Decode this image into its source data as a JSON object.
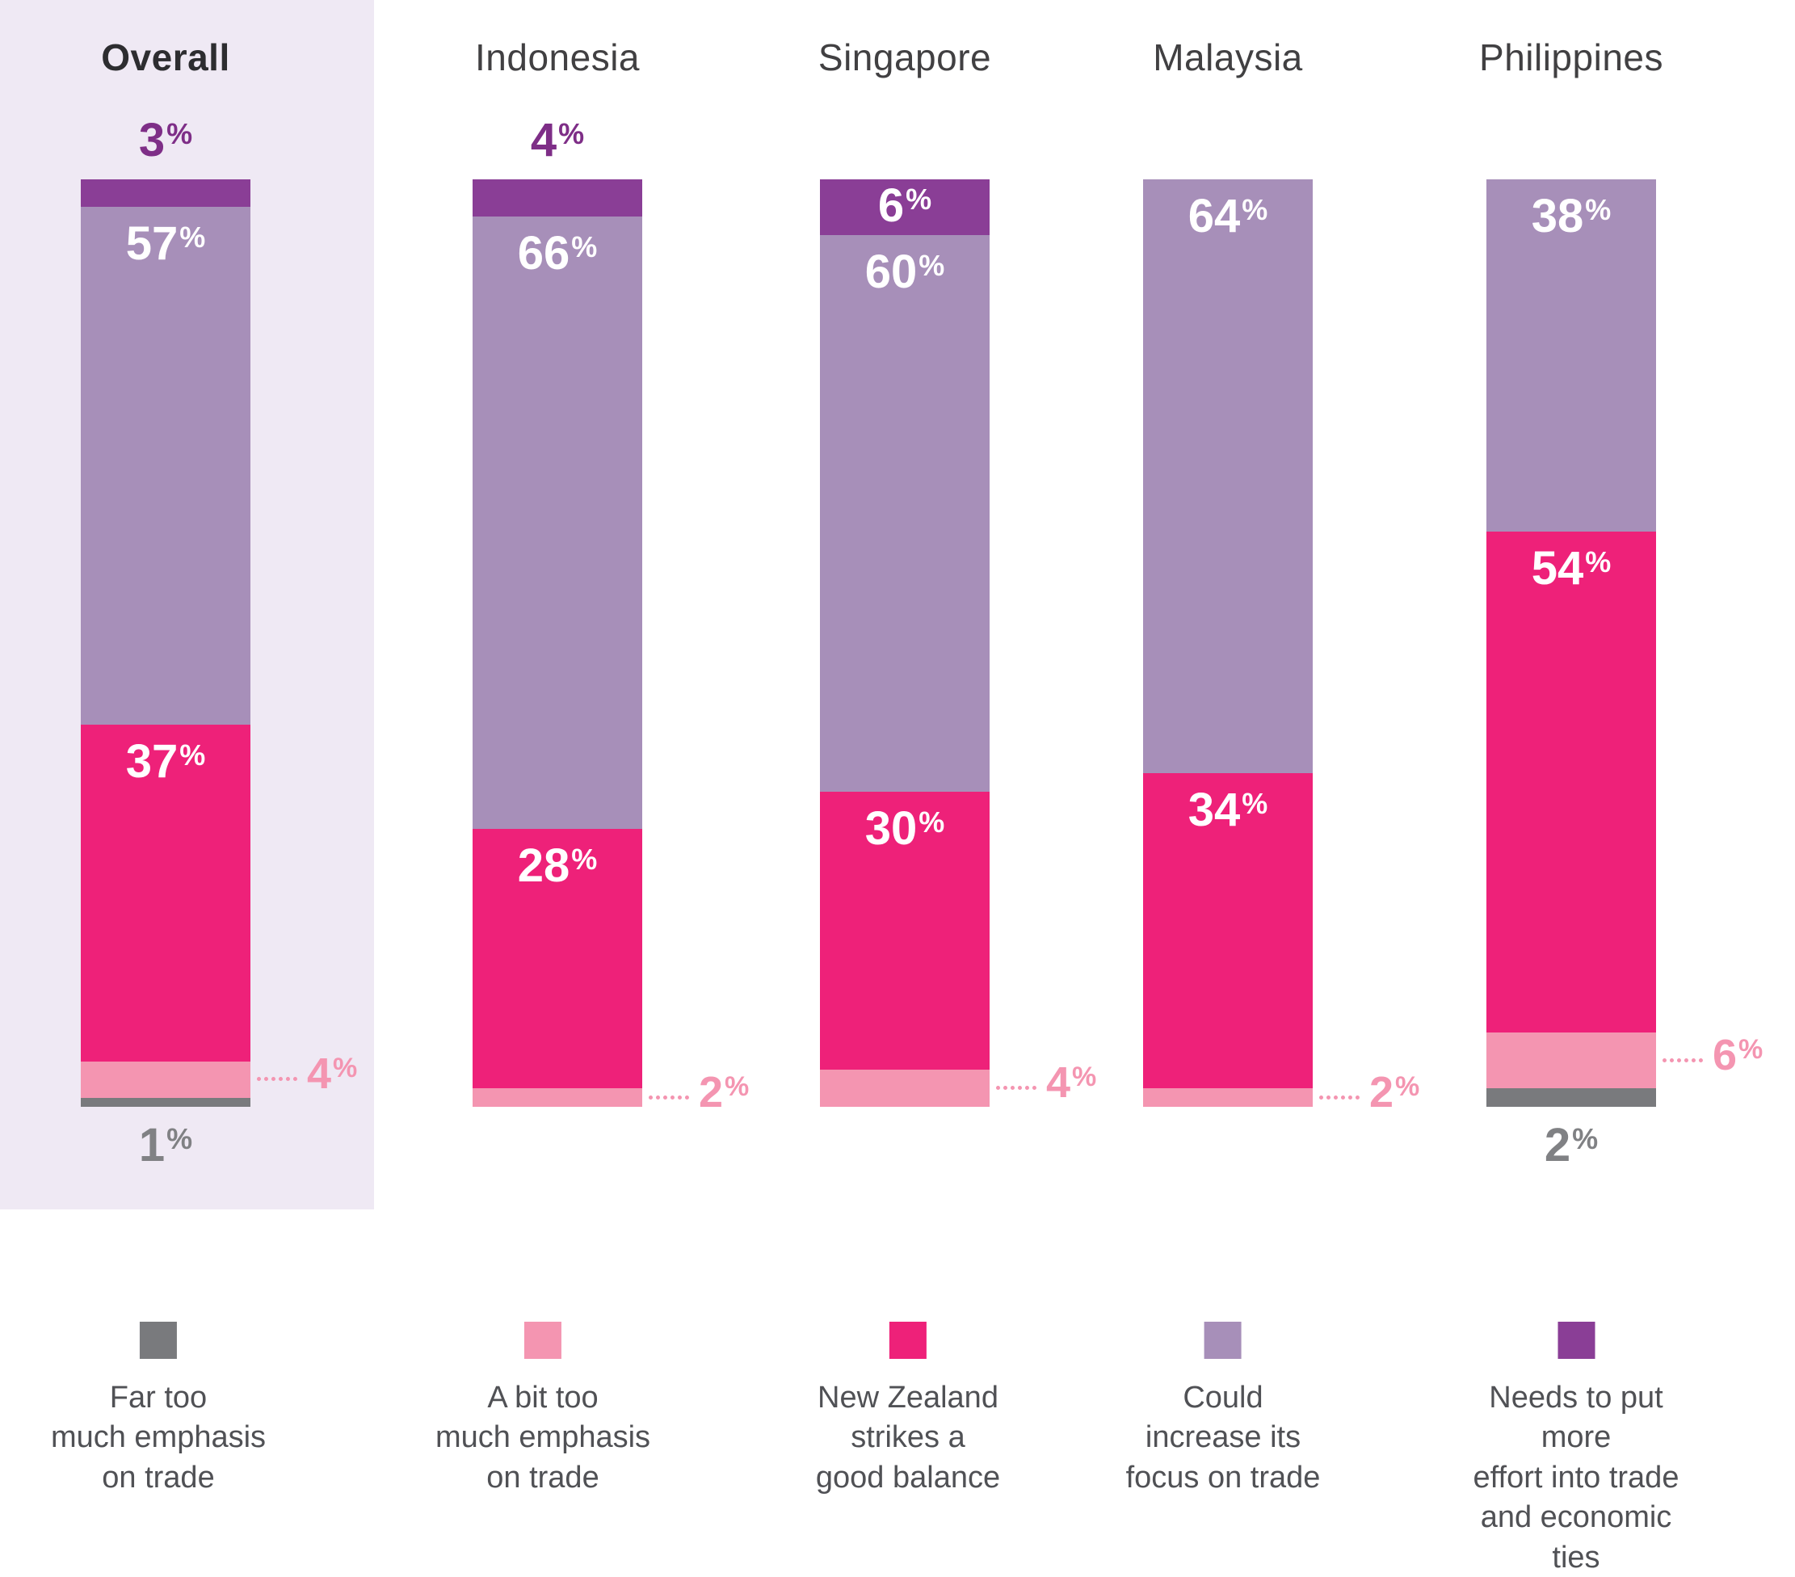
{
  "chart_data": {
    "type": "bar",
    "subtype": "stacked-vertical",
    "unit": "%",
    "value_format": "percent",
    "highlight_color": "#efe9f4",
    "label_colors": {
      "inside": "#ffffff",
      "above": "#7e2e87",
      "below": "#808184",
      "right": "#f495b1"
    },
    "series": [
      {
        "key": "far_too_much",
        "color": "#797a7d",
        "legend_lines": [
          "Far too",
          "much emphasis",
          "on trade"
        ]
      },
      {
        "key": "bit_too_much",
        "color": "#f495b1",
        "legend_lines": [
          "A bit too",
          "much emphasis",
          "on trade"
        ]
      },
      {
        "key": "good_balance",
        "color": "#ee2179",
        "legend_lines": [
          "New Zealand",
          "strikes a",
          "good balance"
        ]
      },
      {
        "key": "could_increase",
        "color": "#a78fb9",
        "legend_lines": [
          "Could",
          "increase its",
          "focus on trade"
        ]
      },
      {
        "key": "more_effort",
        "color": "#8a3e96",
        "legend_lines": [
          "Needs to put more",
          "effort into trade",
          "and economic ties"
        ]
      }
    ],
    "columns": [
      {
        "name": "Overall",
        "highlight": true,
        "segments": [
          {
            "series": "more_effort",
            "value": 3,
            "label_placement": "above"
          },
          {
            "series": "could_increase",
            "value": 57,
            "label_placement": "inside-top"
          },
          {
            "series": "good_balance",
            "value": 37,
            "label_placement": "inside-top"
          },
          {
            "series": "bit_too_much",
            "value": 4,
            "label_placement": "right"
          },
          {
            "series": "far_too_much",
            "value": 1,
            "label_placement": "below"
          }
        ]
      },
      {
        "name": "Indonesia",
        "highlight": false,
        "segments": [
          {
            "series": "more_effort",
            "value": 4,
            "label_placement": "above"
          },
          {
            "series": "could_increase",
            "value": 66,
            "label_placement": "inside-top"
          },
          {
            "series": "good_balance",
            "value": 28,
            "label_placement": "inside-top"
          },
          {
            "series": "bit_too_much",
            "value": 2,
            "label_placement": "right"
          }
        ]
      },
      {
        "name": "Singapore",
        "highlight": false,
        "segments": [
          {
            "series": "more_effort",
            "value": 6,
            "label_placement": "inside-center"
          },
          {
            "series": "could_increase",
            "value": 60,
            "label_placement": "inside-top"
          },
          {
            "series": "good_balance",
            "value": 30,
            "label_placement": "inside-top"
          },
          {
            "series": "bit_too_much",
            "value": 4,
            "label_placement": "right"
          }
        ]
      },
      {
        "name": "Malaysia",
        "highlight": false,
        "segments": [
          {
            "series": "could_increase",
            "value": 64,
            "label_placement": "inside-top"
          },
          {
            "series": "good_balance",
            "value": 34,
            "label_placement": "inside-top"
          },
          {
            "series": "bit_too_much",
            "value": 2,
            "label_placement": "right"
          }
        ]
      },
      {
        "name": "Philippines",
        "highlight": false,
        "segments": [
          {
            "series": "could_increase",
            "value": 38,
            "label_placement": "inside-top"
          },
          {
            "series": "good_balance",
            "value": 54,
            "label_placement": "inside-top"
          },
          {
            "series": "bit_too_much",
            "value": 6,
            "label_placement": "right"
          },
          {
            "series": "far_too_much",
            "value": 2,
            "label_placement": "below"
          }
        ]
      }
    ]
  }
}
